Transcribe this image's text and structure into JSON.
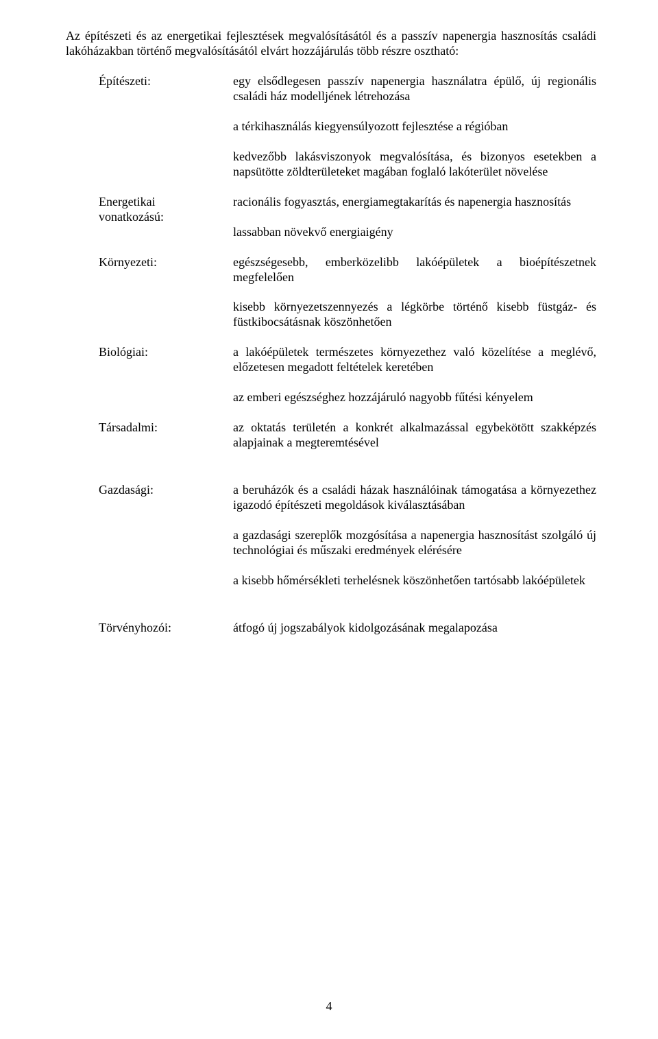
{
  "intro": "Az építészeti és az energetikai fejlesztések megvalósításától és a passzív napenergia hasznosítás családi lakóházakban történő megvalósításától elvárt hozzájárulás több részre osztható:",
  "rows": [
    {
      "label": "Építészeti:",
      "paragraphs": [
        "egy elsődlegesen passzív napenergia használatra épülő, új regionális családi ház modelljének létrehozása",
        "a térkihasználás kiegyensúlyozott fejlesztése a régióban",
        "kedvezőbb lakásviszonyok megvalósítása, és bizonyos esetekben a napsütötte zöldterületeket magában foglaló lakóterület növelése"
      ],
      "gap_after": false
    },
    {
      "label": "Energetikai vonatkozású:",
      "paragraphs": [
        "racionális fogyasztás, energiamegtakarítás és napenergia hasznosítás",
        "lassabban növekvő energiaigény"
      ],
      "gap_after": false
    },
    {
      "label": "Környezeti:",
      "paragraphs": [
        "egészségesebb, emberközelibb lakóépületek a bioépítészetnek megfelelően",
        "kisebb környezetszennyezés a légkörbe történő kisebb füstgáz- és füstkibocsátásnak köszönhetően"
      ],
      "gap_after": false
    },
    {
      "label": "Biológiai:",
      "paragraphs": [
        "a lakóépületek természetes környezethez való közelítése a meglévő, előzetesen megadott feltételek keretében",
        "az emberi egészséghez hozzájáruló nagyobb fűtési kényelem"
      ],
      "gap_after": false
    },
    {
      "label": "Társadalmi:",
      "paragraphs": [
        "az oktatás területén a konkrét alkalmazással egybekötött szakképzés alapjainak a megteremtésével"
      ],
      "gap_after": true
    },
    {
      "label": "Gazdasági:",
      "paragraphs": [
        "a beruházók és a családi házak használóinak támogatása a környezethez igazodó építészeti megoldások kiválasztásában",
        "a gazdasági szereplők mozgósítása a napenergia hasznosítást szolgáló új technológiai és műszaki eredmények elérésére",
        "a kisebb hőmérsékleti terhelésnek köszönhetően tartósabb lakóépületek"
      ],
      "gap_after": true
    },
    {
      "label": "Törvényhozói:",
      "paragraphs": [
        "átfogó új jogszabályok kidolgozásának megalapozása"
      ],
      "gap_after": false
    }
  ],
  "page_number": "4"
}
